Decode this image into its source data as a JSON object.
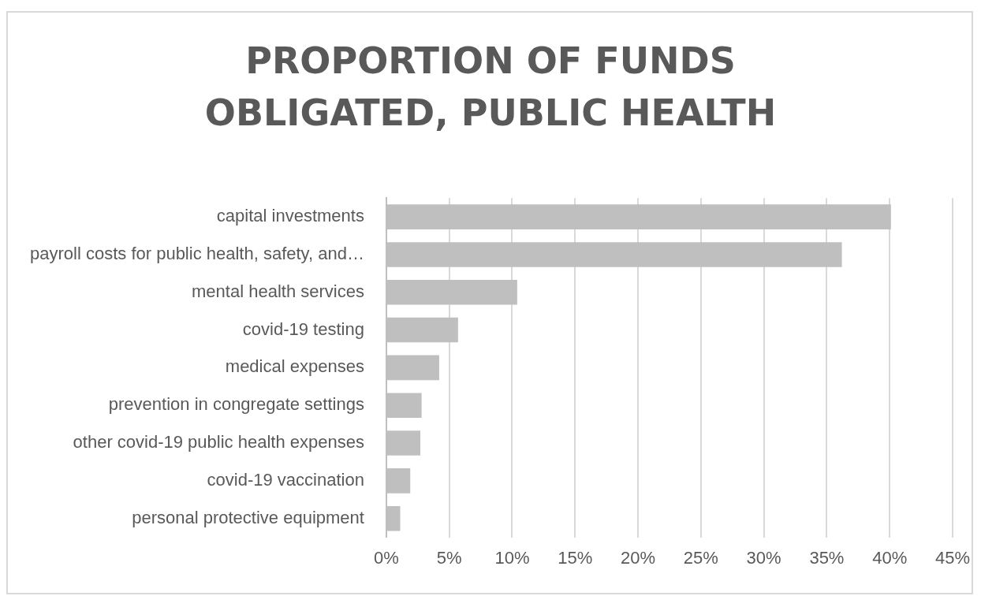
{
  "chart_data": {
    "type": "bar",
    "orientation": "horizontal",
    "title": "PROPORTION OF FUNDS OBLIGATED, PUBLIC HEALTH",
    "categories": [
      "capital investments",
      "payroll costs for public health, safety, and…",
      "mental health services",
      "covid-19 testing",
      "medical expenses",
      "prevention in congregate settings",
      "other covid-19 public health expenses",
      "covid-19 vaccination",
      "personal protective equipment"
    ],
    "values": [
      40.1,
      36.2,
      10.4,
      5.7,
      4.2,
      2.8,
      2.7,
      1.9,
      1.1
    ],
    "color": "#bfbfbf",
    "xlim": [
      0,
      45
    ],
    "xticks": [
      {
        "value": 0,
        "label": "0%"
      },
      {
        "value": 5,
        "label": "5%"
      },
      {
        "value": 10,
        "label": "10%"
      },
      {
        "value": 15,
        "label": "15%"
      },
      {
        "value": 20,
        "label": "20%"
      },
      {
        "value": 25,
        "label": "25%"
      },
      {
        "value": 30,
        "label": "30%"
      },
      {
        "value": 35,
        "label": "35%"
      },
      {
        "value": 40,
        "label": "40%"
      },
      {
        "value": 45,
        "label": "45%"
      }
    ],
    "grid": "x",
    "legend": false
  }
}
